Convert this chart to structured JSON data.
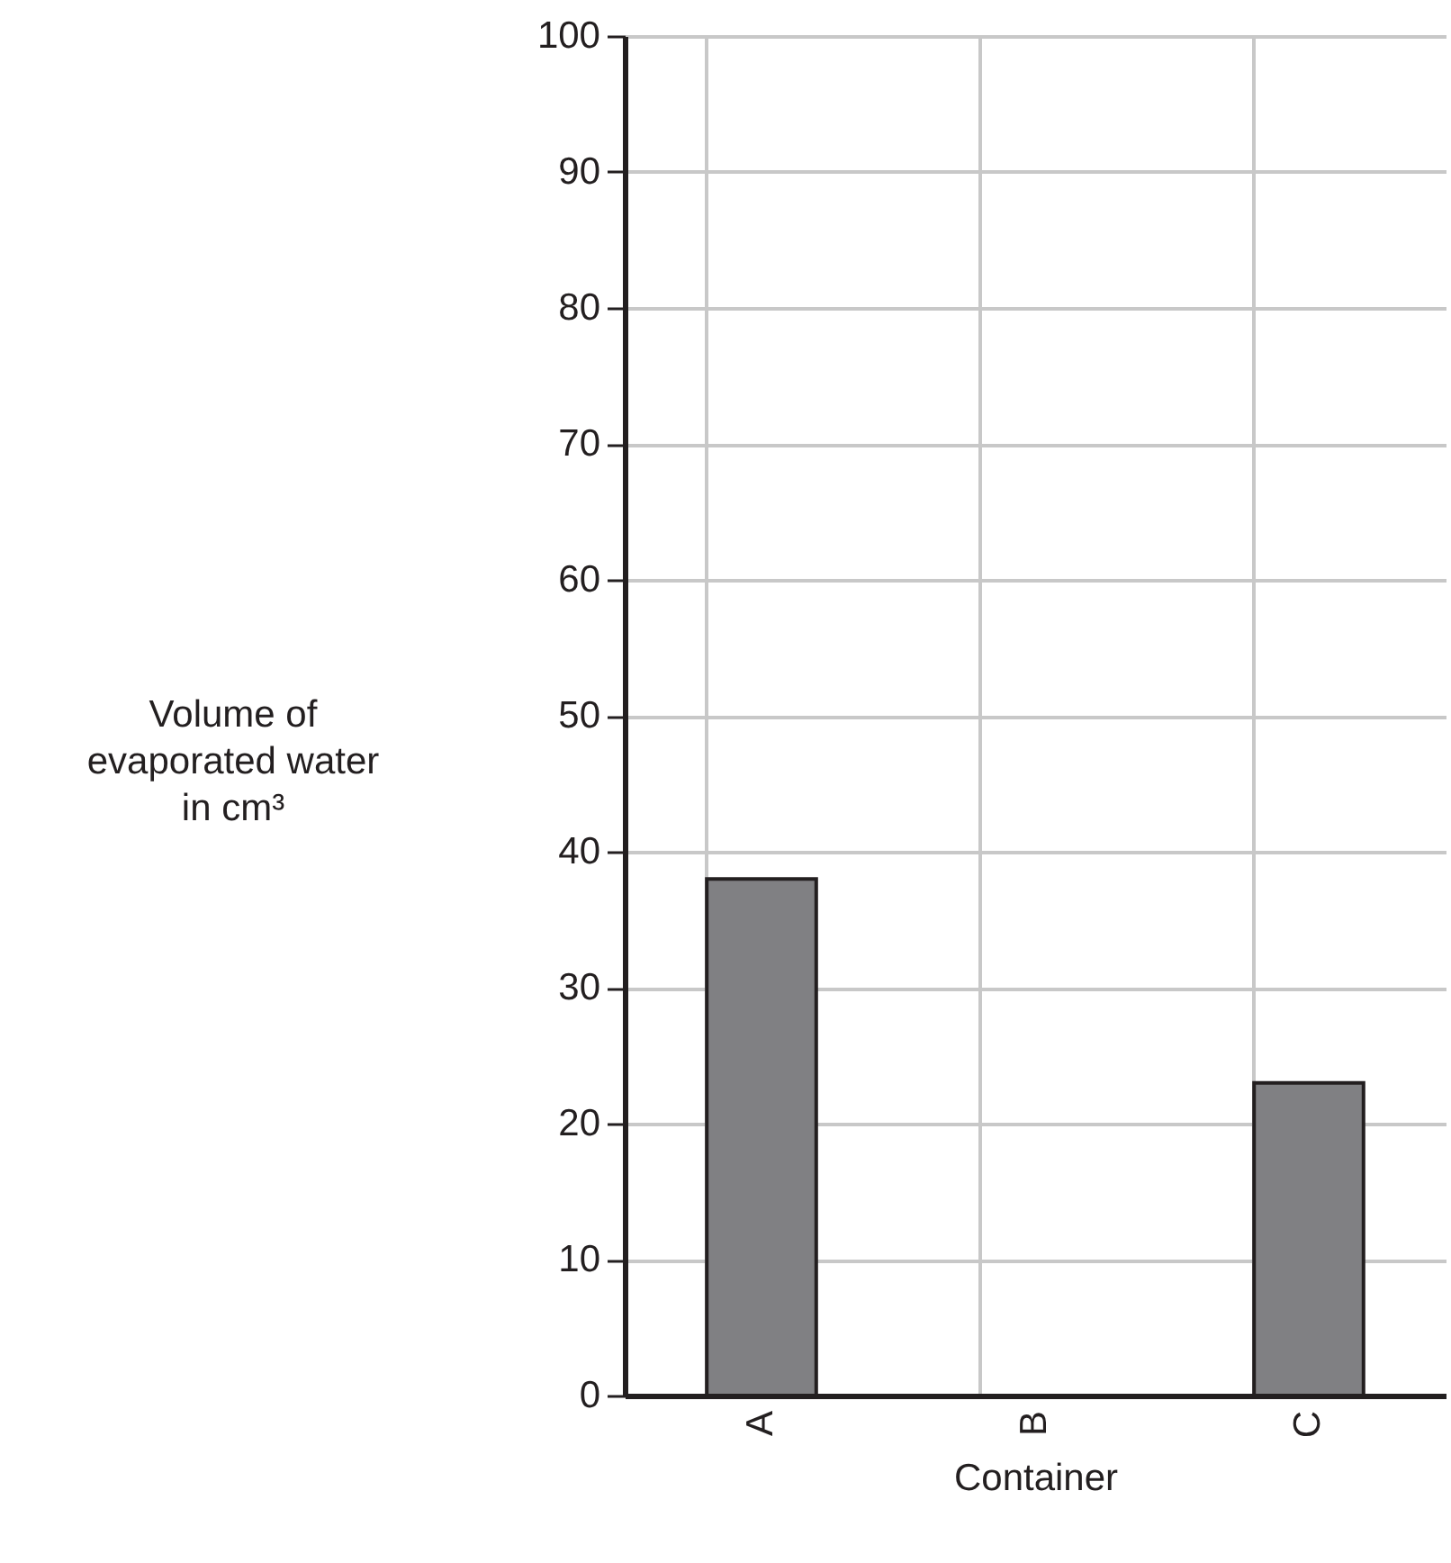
{
  "chart_data": {
    "type": "bar",
    "xlabel": "Container",
    "ylabel": "Volume of evaporated water in cm³",
    "categories": [
      "A",
      "B",
      "C"
    ],
    "values": [
      38,
      null,
      23
    ],
    "color": "#808083",
    "ylim": [
      0,
      100
    ],
    "yticks": [
      0,
      10,
      20,
      30,
      40,
      50,
      60,
      70,
      80,
      90,
      100
    ],
    "grid": true
  }
}
